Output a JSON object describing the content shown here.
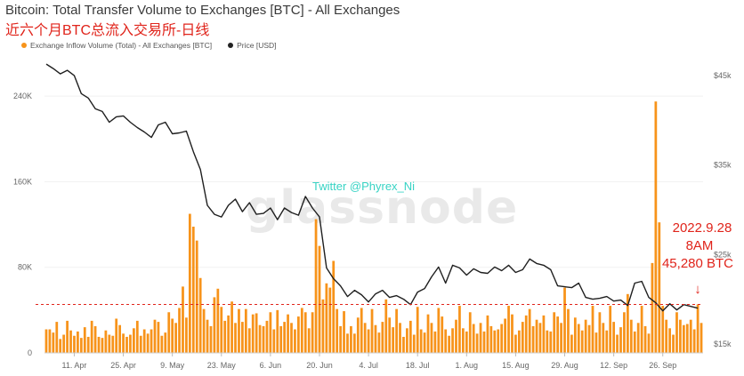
{
  "title": "Bitcoin: Total Transfer Volume to Exchanges [BTC] - All Exchanges",
  "subtitle": "近六个月BTC总流入交易所-日线",
  "legend": [
    {
      "label": "Exchange Inflow Volume (Total) - All Exchanges [BTC]",
      "color": "#f7931a"
    },
    {
      "label": "Price [USD]",
      "color": "#222222"
    }
  ],
  "watermark": "glassnode",
  "twitter_handle": "Twitter @Phyrex_Ni",
  "annotation": {
    "lines": [
      "2022.9.28",
      "8AM",
      "45,280 BTC"
    ],
    "arrow": "↓"
  },
  "colors": {
    "bar": "#f7931a",
    "price": "#1f1f1f",
    "annotation": "#e0241b",
    "twitter": "#37d3c4"
  },
  "chart_data": {
    "type": "bar+line",
    "x_tick_labels": [
      "11. Apr",
      "25. Apr",
      "9. May",
      "23. May",
      "6. Jun",
      "20. Jun",
      "4. Jul",
      "18. Jul",
      "1. Aug",
      "15. Aug",
      "29. Aug",
      "12. Sep",
      "26. Sep"
    ],
    "y_left_ticks": [
      "0",
      "80K",
      "160K",
      "240K"
    ],
    "y_right_ticks": [
      "$15k",
      "$25k",
      "$35k",
      "$45k"
    ],
    "y_left_range": [
      0,
      280000
    ],
    "y_right_range": [
      14000,
      47500
    ],
    "reference_line": 45280,
    "series": [
      {
        "name": "Exchange Inflow Volume (Total) - All Exchanges [BTC]",
        "axis": "left",
        "values": [
          22000,
          22000,
          19000,
          29000,
          13000,
          17000,
          30000,
          21000,
          16000,
          20000,
          14000,
          24000,
          15000,
          30000,
          25000,
          15000,
          14000,
          21000,
          17000,
          16000,
          32000,
          26000,
          18000,
          15000,
          17000,
          23000,
          30000,
          16000,
          22000,
          18000,
          22000,
          31000,
          29000,
          16000,
          19000,
          38000,
          32000,
          28000,
          42000,
          62000,
          33000,
          130000,
          118000,
          105000,
          70000,
          41000,
          31000,
          25000,
          52000,
          60000,
          43000,
          30000,
          35000,
          48000,
          28000,
          41000,
          29000,
          41000,
          23000,
          36000,
          37000,
          26000,
          25000,
          30000,
          38000,
          22000,
          40000,
          25000,
          29000,
          36000,
          28000,
          22000,
          34000,
          42000,
          38000,
          23000,
          38000,
          125000,
          100000,
          50000,
          65000,
          61000,
          86000,
          41000,
          25000,
          39000,
          18000,
          25000,
          18000,
          33000,
          42000,
          28000,
          22000,
          41000,
          26000,
          19000,
          29000,
          50000,
          33000,
          24000,
          41000,
          28000,
          15000,
          23000,
          30000,
          17000,
          43000,
          22000,
          19000,
          36000,
          28000,
          20000,
          42000,
          34000,
          22000,
          16000,
          23000,
          31000,
          44000,
          23000,
          20000,
          38000,
          27000,
          18000,
          28000,
          20000,
          35000,
          25000,
          21000,
          22000,
          27000,
          32000,
          44000,
          36000,
          17000,
          21000,
          29000,
          35000,
          41000,
          25000,
          31000,
          28000,
          35000,
          21000,
          20000,
          38000,
          34000,
          28000,
          61000,
          41000,
          17000,
          33000,
          27000,
          21000,
          31000,
          26000,
          44000,
          19000,
          38000,
          28000,
          21000,
          44000,
          29000,
          17000,
          24000,
          38000,
          55000,
          31000,
          20000,
          28000,
          44000,
          25000,
          18000,
          84000,
          235000,
          122000,
          44000,
          31000,
          23000,
          17000,
          38000,
          31000,
          26000,
          27000,
          31000,
          22000,
          45280,
          28000
        ]
      },
      {
        "name": "Price [USD]",
        "axis": "right",
        "points": [
          [
            0,
            46300
          ],
          [
            2,
            45800
          ],
          [
            4,
            45200
          ],
          [
            6,
            45600
          ],
          [
            8,
            45000
          ],
          [
            10,
            43000
          ],
          [
            12,
            42500
          ],
          [
            14,
            41300
          ],
          [
            16,
            41000
          ],
          [
            18,
            39800
          ],
          [
            20,
            40400
          ],
          [
            22,
            40500
          ],
          [
            24,
            39800
          ],
          [
            26,
            39200
          ],
          [
            28,
            38700
          ],
          [
            30,
            38100
          ],
          [
            32,
            39500
          ],
          [
            34,
            39800
          ],
          [
            36,
            38500
          ],
          [
            38,
            38600
          ],
          [
            40,
            38800
          ],
          [
            42,
            36500
          ],
          [
            44,
            34500
          ],
          [
            46,
            30500
          ],
          [
            48,
            29500
          ],
          [
            50,
            29200
          ],
          [
            52,
            30500
          ],
          [
            54,
            31200
          ],
          [
            56,
            29800
          ],
          [
            58,
            30800
          ],
          [
            60,
            29500
          ],
          [
            62,
            29600
          ],
          [
            64,
            30200
          ],
          [
            66,
            28900
          ],
          [
            68,
            30200
          ],
          [
            70,
            29700
          ],
          [
            72,
            29400
          ],
          [
            74,
            31500
          ],
          [
            76,
            30200
          ],
          [
            78,
            29200
          ],
          [
            80,
            23500
          ],
          [
            82,
            22300
          ],
          [
            84,
            21500
          ],
          [
            86,
            20300
          ],
          [
            88,
            21000
          ],
          [
            90,
            20500
          ],
          [
            92,
            19700
          ],
          [
            94,
            20600
          ],
          [
            96,
            21000
          ],
          [
            98,
            20200
          ],
          [
            100,
            20400
          ],
          [
            102,
            20000
          ],
          [
            104,
            19400
          ],
          [
            106,
            20800
          ],
          [
            108,
            21200
          ],
          [
            110,
            22500
          ],
          [
            112,
            23600
          ],
          [
            114,
            21800
          ],
          [
            116,
            23800
          ],
          [
            118,
            23500
          ],
          [
            120,
            22700
          ],
          [
            122,
            23400
          ],
          [
            124,
            23000
          ],
          [
            126,
            22900
          ],
          [
            128,
            23600
          ],
          [
            130,
            23200
          ],
          [
            132,
            23800
          ],
          [
            134,
            23000
          ],
          [
            136,
            23300
          ],
          [
            138,
            24500
          ],
          [
            140,
            24000
          ],
          [
            142,
            23800
          ],
          [
            144,
            23300
          ],
          [
            146,
            21500
          ],
          [
            148,
            21400
          ],
          [
            150,
            21300
          ],
          [
            152,
            21800
          ],
          [
            154,
            20200
          ],
          [
            156,
            20000
          ],
          [
            158,
            20100
          ],
          [
            160,
            20300
          ],
          [
            162,
            19800
          ],
          [
            164,
            19900
          ],
          [
            166,
            19300
          ],
          [
            168,
            21800
          ],
          [
            170,
            22000
          ],
          [
            172,
            20200
          ],
          [
            174,
            19600
          ],
          [
            176,
            18700
          ],
          [
            178,
            19500
          ],
          [
            180,
            18800
          ],
          [
            182,
            19400
          ],
          [
            184,
            19200
          ],
          [
            186,
            19000
          ]
        ]
      }
    ]
  }
}
